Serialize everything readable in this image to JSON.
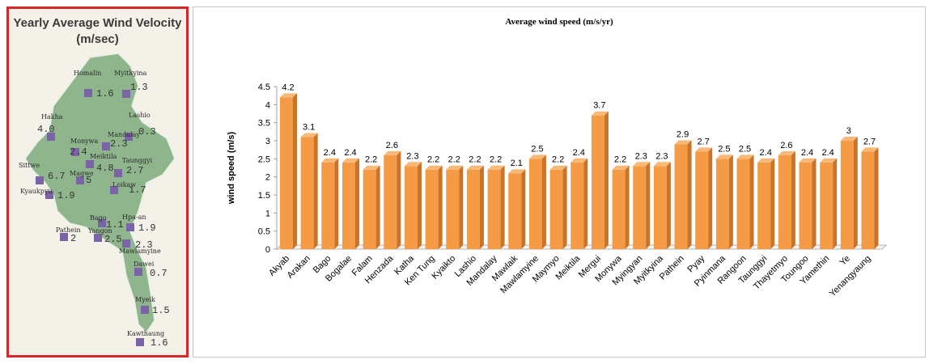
{
  "map": {
    "title_line1": "Yearly Average Wind Velocity",
    "title_line2": "(m/sec)",
    "places": [
      {
        "name": "Homalin",
        "value": "1.6"
      },
      {
        "name": "Myitkyina",
        "value": "1.3"
      },
      {
        "name": "Hakha",
        "value": "4.0"
      },
      {
        "name": "Lashio",
        "value": "0.3"
      },
      {
        "name": "Mandalay",
        "value": "2.3"
      },
      {
        "name": "Monywa",
        "value": "2.4"
      },
      {
        "name": "Meiktila",
        "value": "4.8"
      },
      {
        "name": "Taunggyi",
        "value": "2.7"
      },
      {
        "name": "Sittwe",
        "value": "6.7"
      },
      {
        "name": "Magwe",
        "value": "5"
      },
      {
        "name": "Loikaw",
        "value": "1.7"
      },
      {
        "name": "Kyaukpyu",
        "value": "1.9"
      },
      {
        "name": "Bago",
        "value": "1.1"
      },
      {
        "name": "Hpa-an",
        "value": "1.9"
      },
      {
        "name": "Pathein",
        "value": "2"
      },
      {
        "name": "Yangon",
        "value": "2.5"
      },
      {
        "name": "Mawlamyine",
        "value": "2.3"
      },
      {
        "name": "Dawei",
        "value": "0.7"
      },
      {
        "name": "Myeik",
        "value": "1.5"
      },
      {
        "name": "Kawthaung",
        "value": "1.6"
      }
    ]
  },
  "chart_data": {
    "type": "bar",
    "title": "Average wind speed (m/s/yr)",
    "ylabel": "wind speed (m/s)",
    "ylim": [
      0,
      4.5
    ],
    "yticks": [
      "0",
      "0.5",
      "1",
      "1.5",
      "2",
      "2.5",
      "3",
      "3.5",
      "4",
      "4.5"
    ],
    "grid": false,
    "bar_color": "#f59a45",
    "categories": [
      "Akyab",
      "Arakan",
      "Bago",
      "Bogalae",
      "Falam",
      "Henzada",
      "Katha",
      "Ken Tung",
      "Kyaikto",
      "Lashio",
      "Mandalay",
      "Mawlaik",
      "Mawlamyine",
      "Maymyo",
      "Meiktila",
      "Mergui",
      "Monywa",
      "Myingyan",
      "Myitkyina",
      "Pathein",
      "Pyay",
      "Pyinmana",
      "Rangoon",
      "Taunggyi",
      "Thayetmyo",
      "Toungoo",
      "Yamethin",
      "Ye",
      "Yenangyaung"
    ],
    "values": [
      4.2,
      3.1,
      2.4,
      2.4,
      2.2,
      2.6,
      2.3,
      2.2,
      2.2,
      2.2,
      2.2,
      2.1,
      2.5,
      2.2,
      2.4,
      3.7,
      2.2,
      2.3,
      2.3,
      2.9,
      2.7,
      2.5,
      2.5,
      2.4,
      2.6,
      2.4,
      2.4,
      3,
      2.7
    ],
    "data_labels": [
      "4.2",
      "3.1",
      "2.4",
      "2.4",
      "2.2",
      "2.6",
      "2.3",
      "2.2",
      "2.2",
      "2.2",
      "2.2",
      "2.1",
      "2.5",
      "2.2",
      "2.4",
      "3.7",
      "2.2",
      "2.3",
      "2.3",
      "2.9",
      "2.7",
      "2.5",
      "2.5",
      "2.4",
      "2.6",
      "2.4",
      "2.4",
      "3",
      "2.7"
    ]
  }
}
